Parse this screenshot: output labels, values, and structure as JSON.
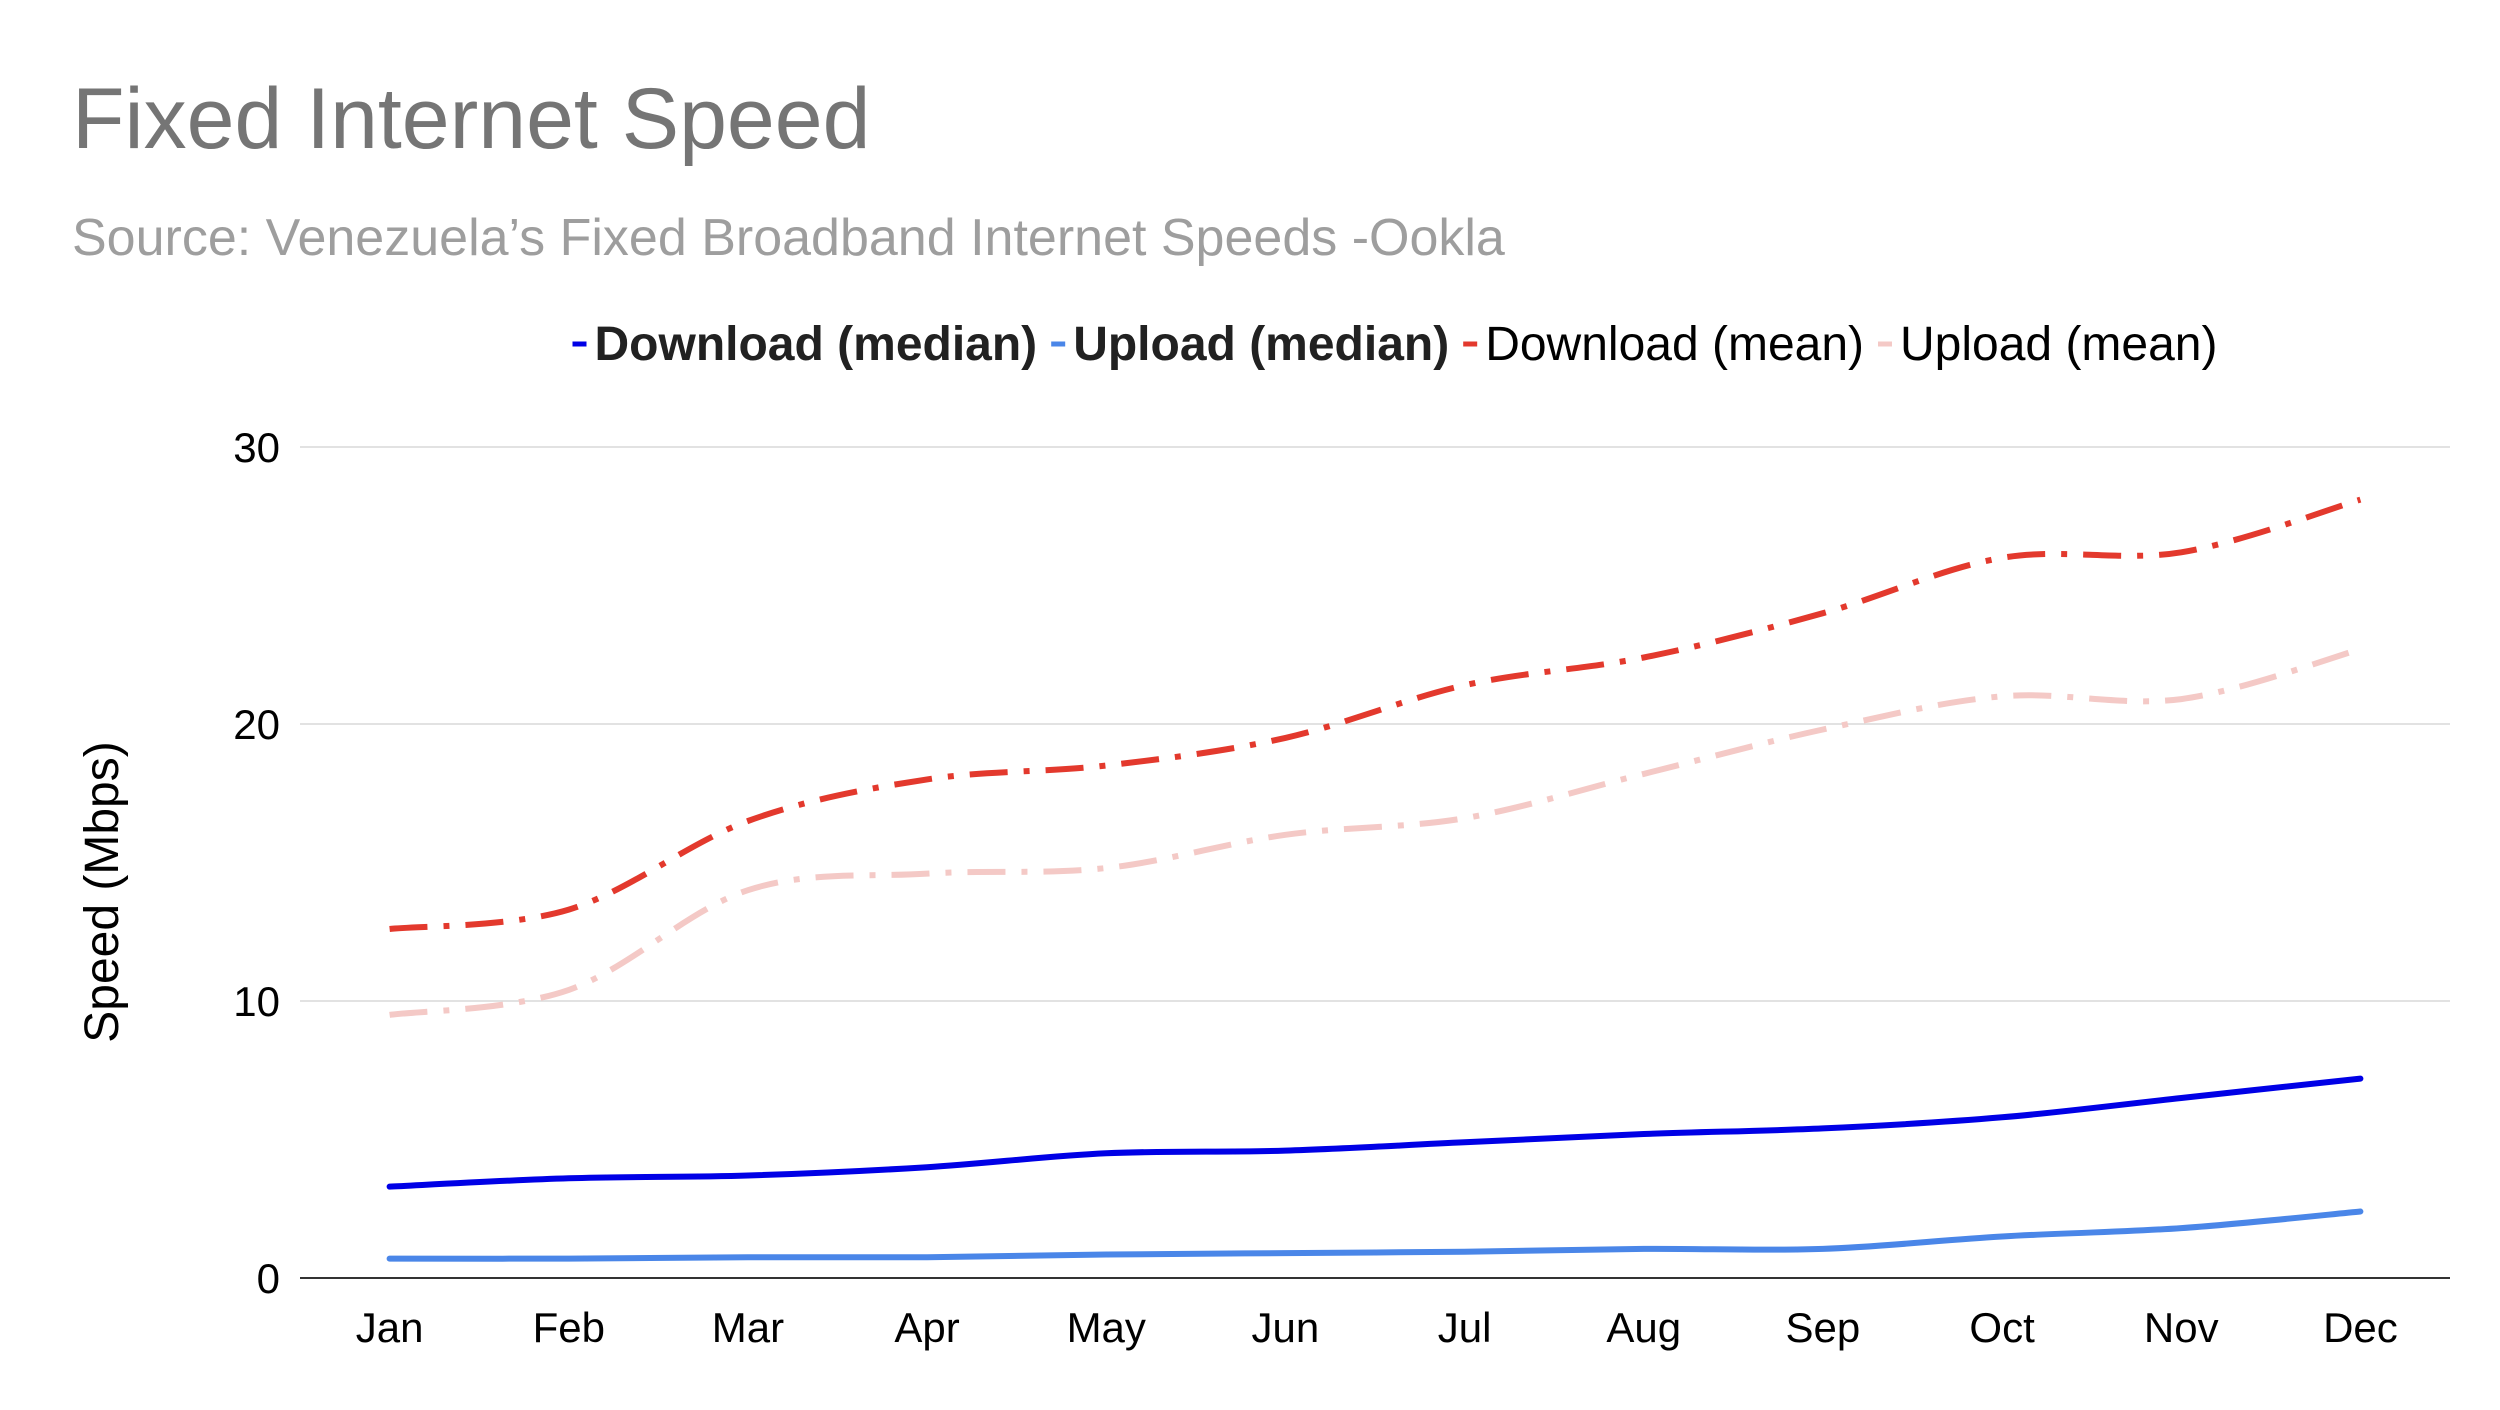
{
  "title": "Fixed Internet Speed",
  "subtitle": "Source: Venezuela’s Fixed Broadband Internet Speeds -Ookla",
  "chart_data": {
    "type": "line",
    "title": "Fixed Internet Speed",
    "subtitle": "Source: Venezuela’s Fixed Broadband Internet Speeds -Ookla",
    "xlabel": "",
    "ylabel": "Speed (Mbps)",
    "ylim": [
      0,
      30
    ],
    "yticks": [
      0,
      10,
      20,
      30
    ],
    "grid": true,
    "legend_position": "top",
    "categories": [
      "Jan",
      "Feb",
      "Mar",
      "Apr",
      "May",
      "Jun",
      "Jul",
      "Aug",
      "Sep",
      "Oct",
      "Nov",
      "Dec"
    ],
    "series": [
      {
        "name": "Download (median)",
        "color": "#0000e6",
        "style": "solid",
        "bold_label": true,
        "values": [
          3.3,
          3.6,
          3.7,
          4.0,
          4.5,
          4.6,
          4.9,
          5.2,
          5.4,
          5.8,
          6.5,
          7.2
        ]
      },
      {
        "name": "Upload (median)",
        "color": "#4a86e8",
        "style": "solid",
        "bold_label": true,
        "values": [
          0.7,
          0.7,
          0.75,
          0.75,
          0.85,
          0.9,
          0.95,
          1.05,
          1.05,
          1.5,
          1.8,
          2.4
        ]
      },
      {
        "name": "Download (mean)",
        "color": "#e3392d",
        "style": "dashdot",
        "bold_label": false,
        "values": [
          12.6,
          13.3,
          16.5,
          18.0,
          18.5,
          19.5,
          21.4,
          22.4,
          24.0,
          26.0,
          26.2,
          28.1
        ]
      },
      {
        "name": "Upload (mean)",
        "color": "#f4c9c6",
        "style": "dashdot",
        "bold_label": false,
        "values": [
          9.5,
          10.4,
          14.0,
          14.6,
          14.8,
          16.0,
          16.6,
          18.2,
          19.8,
          21.0,
          20.9,
          22.7
        ]
      }
    ]
  }
}
